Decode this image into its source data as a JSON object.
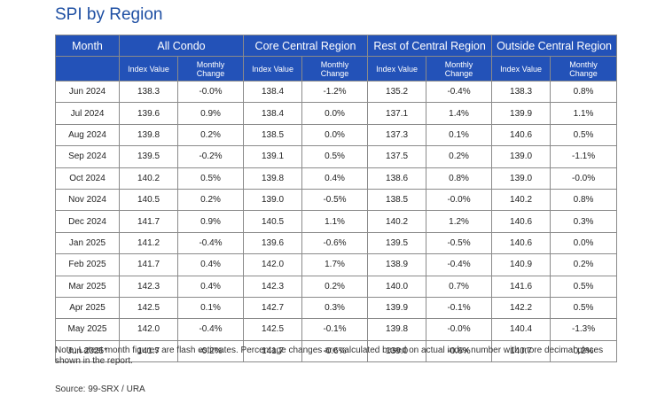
{
  "title": "SPI by Region",
  "colors": {
    "title": "#1e4fa3",
    "header_bg": "#2352b8",
    "header_text": "#ffffff",
    "border": "#8a8a8a"
  },
  "table": {
    "month_header": "Month",
    "groups": [
      "All Condo",
      "Core Central Region",
      "Rest of Central Region",
      "Outside Central Region"
    ],
    "sub_index": "Index Value",
    "sub_change": "Monthly Change",
    "rows": [
      [
        "Jun 2024",
        "138.3",
        "-0.0%",
        "138.4",
        "-1.2%",
        "135.2",
        "-0.4%",
        "138.3",
        "0.8%"
      ],
      [
        "Jul 2024",
        "139.6",
        "0.9%",
        "138.4",
        "0.0%",
        "137.1",
        "1.4%",
        "139.9",
        "1.1%"
      ],
      [
        "Aug 2024",
        "139.8",
        "0.2%",
        "138.5",
        "0.0%",
        "137.3",
        "0.1%",
        "140.6",
        "0.5%"
      ],
      [
        "Sep 2024",
        "139.5",
        "-0.2%",
        "139.1",
        "0.5%",
        "137.5",
        "0.2%",
        "139.0",
        "-1.1%"
      ],
      [
        "Oct 2024",
        "140.2",
        "0.5%",
        "139.8",
        "0.4%",
        "138.6",
        "0.8%",
        "139.0",
        "-0.0%"
      ],
      [
        "Nov 2024",
        "140.5",
        "0.2%",
        "139.0",
        "-0.5%",
        "138.5",
        "-0.0%",
        "140.2",
        "0.8%"
      ],
      [
        "Dec 2024",
        "141.7",
        "0.9%",
        "140.5",
        "1.1%",
        "140.2",
        "1.2%",
        "140.6",
        "0.3%"
      ],
      [
        "Jan 2025",
        "141.2",
        "-0.4%",
        "139.6",
        "-0.6%",
        "139.5",
        "-0.5%",
        "140.6",
        "0.0%"
      ],
      [
        "Feb 2025",
        "141.7",
        "0.4%",
        "142.0",
        "1.7%",
        "138.9",
        "-0.4%",
        "140.9",
        "0.2%"
      ],
      [
        "Mar 2025",
        "142.3",
        "0.4%",
        "142.3",
        "0.2%",
        "140.0",
        "0.7%",
        "141.6",
        "0.5%"
      ],
      [
        "Apr 2025",
        "142.5",
        "0.1%",
        "142.7",
        "0.3%",
        "139.9",
        "-0.1%",
        "142.2",
        "0.5%"
      ],
      [
        "May 2025",
        "142.0",
        "-0.4%",
        "142.5",
        "-0.1%",
        "139.8",
        "-0.0%",
        "140.4",
        "-1.3%"
      ],
      [
        "Jun 2025*",
        "141.7",
        "-0.2%",
        "141.7",
        "-0.6%",
        "139.0",
        "-0.6%",
        "140.7",
        "0.2%"
      ]
    ]
  },
  "note": "Note: Latest month figures are flash estimates. Percentage changes are calculated based on actual index number with more decimal places shown in the report.",
  "source": "Source: 99-SRX / URA"
}
